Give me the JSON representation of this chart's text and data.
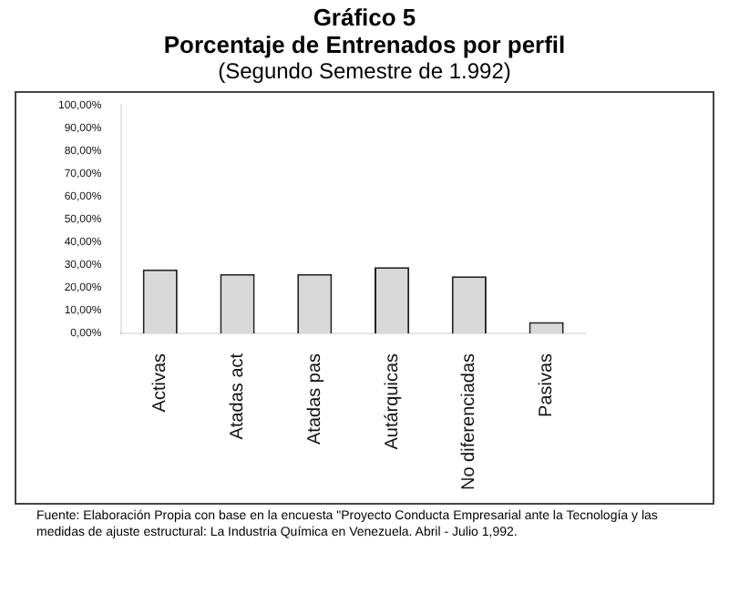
{
  "chart_data": {
    "type": "bar",
    "title": "Gráfico 5\nPorcentaje de Entrenados por perfil",
    "subtitle": "(Segundo Semestre de 1.992)",
    "categories": [
      "Activas",
      "Atadas act",
      "Atadas pas",
      "Autárquicas",
      "No diferenciadas",
      "Pasivas"
    ],
    "values": [
      28,
      26,
      26,
      29,
      25,
      5
    ],
    "color": "#d9d9d9",
    "ylim": [
      0,
      100
    ],
    "yticks": [
      {
        "value": 0,
        "label": "0,00%"
      },
      {
        "value": 10,
        "label": "10,00%"
      },
      {
        "value": 20,
        "label": "20,00%"
      },
      {
        "value": 30,
        "label": "30,00%"
      },
      {
        "value": 40,
        "label": "40,00%"
      },
      {
        "value": 50,
        "label": "50,00%"
      },
      {
        "value": 60,
        "label": "60,00%"
      },
      {
        "value": 70,
        "label": "70,00%"
      },
      {
        "value": 80,
        "label": "80,00%"
      },
      {
        "value": 90,
        "label": "90,00%"
      },
      {
        "value": 100,
        "label": "100,00%"
      }
    ],
    "grid": false,
    "annotations": [
      "Fuente: Elaboración Propia con base en la encuesta \"Proyecto Conducta Empresarial ante la Tecnología y las medidas de ajuste estructural: La Industria Química en Venezuela. Abril - Julio 1,992."
    ]
  }
}
